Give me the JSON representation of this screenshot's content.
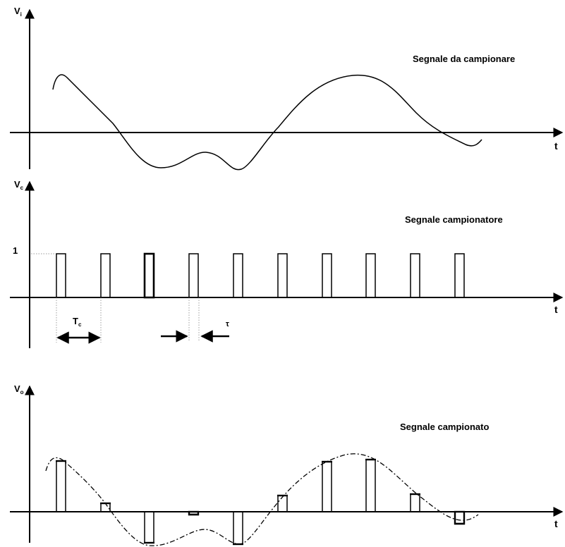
{
  "panels": {
    "input": {
      "title": "Segnale da campionare",
      "y_axis_main": "V",
      "y_axis_sub": "i",
      "x_axis": "t"
    },
    "sampler": {
      "title": "Segnale campionatore",
      "y_axis_main": "V",
      "y_axis_sub": "c",
      "x_axis": "t",
      "level_label": "1",
      "period_main": "T",
      "period_sub": "c",
      "width_label": "τ"
    },
    "output": {
      "title": "Segnale campionato",
      "y_axis_main": "V",
      "y_axis_sub": "o",
      "x_axis": "t"
    }
  },
  "colors": {
    "line": "#000000",
    "background": "#ffffff"
  }
}
